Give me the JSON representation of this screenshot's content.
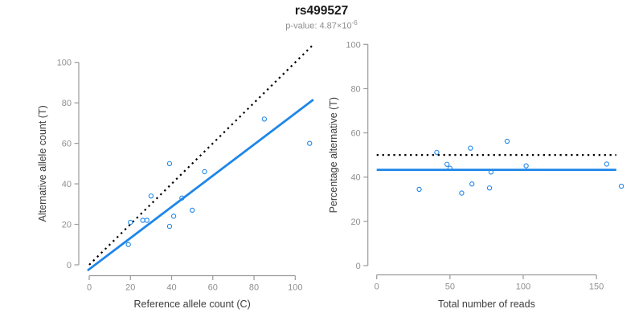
{
  "header": {
    "title": "rs499527",
    "subtitle_base": "p-value: 4.87×10",
    "subtitle_exponent": "-6"
  },
  "colors": {
    "accent_blue": "#1E86E8",
    "dotted_black": "#000000",
    "axis_line": "#9a9a9a",
    "tick_text": "#8f8f8f",
    "axis_title_text": "#3d3d3d"
  },
  "chart_data": [
    {
      "type": "scatter",
      "name": "allele-counts-panel",
      "title": "",
      "xlabel": "Reference allele count (C)",
      "ylabel": "Alternative allele count (T)",
      "xlim": [
        0,
        108.8
      ],
      "ylim": [
        0,
        108.8
      ],
      "xticks": [
        0,
        20,
        40,
        60,
        80,
        100
      ],
      "yticks": [
        0,
        20,
        40,
        60,
        80,
        100
      ],
      "grid": false,
      "legend": null,
      "points": [
        [
          19,
          10
        ],
        [
          20,
          21
        ],
        [
          26,
          22
        ],
        [
          28,
          22
        ],
        [
          30,
          34
        ],
        [
          39,
          19
        ],
        [
          39,
          50
        ],
        [
          41,
          24
        ],
        [
          45,
          33
        ],
        [
          50,
          27
        ],
        [
          56,
          46
        ],
        [
          85,
          72
        ],
        [
          107,
          60
        ]
      ],
      "lines": [
        {
          "name": "identity-line",
          "style": "dotted",
          "color": "#000000",
          "width": 2.2,
          "from": [
            0,
            0
          ],
          "to": [
            108.8,
            108.8
          ]
        },
        {
          "name": "fit-line",
          "style": "solid",
          "color": "#1E86E8",
          "width": 2.8,
          "from": [
            -0.8,
            -2.8
          ],
          "to": [
            108.8,
            81.6
          ]
        }
      ]
    },
    {
      "type": "scatter",
      "name": "percentage-panel",
      "title": "",
      "xlabel": "Total number of reads",
      "ylabel": "Percentage alternative (T)",
      "xlim": [
        0,
        168
      ],
      "ylim": [
        0,
        100
      ],
      "xticks": [
        0,
        50,
        100,
        150
      ],
      "yticks": [
        0,
        20,
        40,
        60,
        80,
        100
      ],
      "grid": false,
      "legend": null,
      "points": [
        [
          29,
          34.5
        ],
        [
          41,
          51.2
        ],
        [
          48,
          45.8
        ],
        [
          50,
          44.0
        ],
        [
          58,
          32.8
        ],
        [
          64,
          53.1
        ],
        [
          65,
          36.9
        ],
        [
          77,
          35.1
        ],
        [
          78,
          42.3
        ],
        [
          89,
          56.2
        ],
        [
          102,
          45.1
        ],
        [
          157,
          45.9
        ],
        [
          167,
          35.9
        ]
      ],
      "lines": [
        {
          "name": "expected-50pct-line",
          "style": "dotted",
          "color": "#000000",
          "width": 2.2,
          "from": [
            0,
            50
          ],
          "to": [
            163.5,
            50
          ]
        },
        {
          "name": "overall-pct-line",
          "style": "solid",
          "color": "#1E86E8",
          "width": 2.8,
          "from": [
            0,
            43.3
          ],
          "to": [
            163.5,
            43.3
          ]
        }
      ]
    }
  ]
}
